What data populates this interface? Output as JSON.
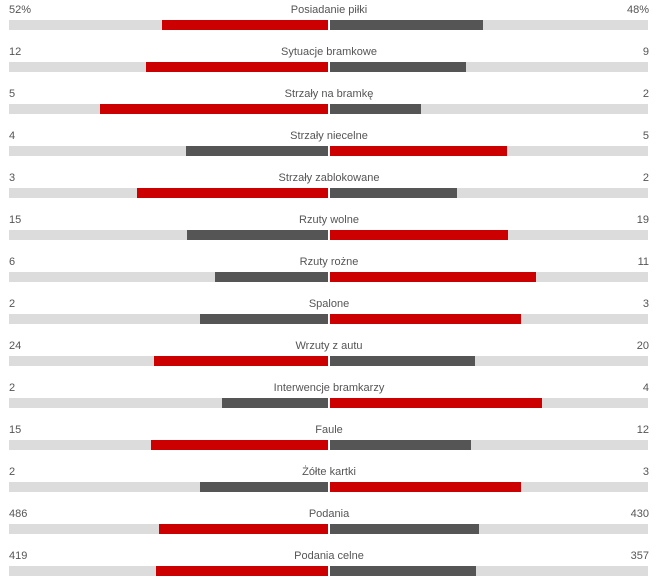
{
  "colors": {
    "winner": "#cc0000",
    "loser": "#555555",
    "track": "#dcdcdc"
  },
  "stats": [
    {
      "label": "Posiadanie piłki",
      "home": "52%",
      "away": "48%",
      "home_share": 0.52,
      "away_share": 0.48
    },
    {
      "label": "Sytuacje bramkowe",
      "home": "12",
      "away": "9",
      "home_share": 0.571,
      "away_share": 0.429
    },
    {
      "label": "Strzały na bramkę",
      "home": "5",
      "away": "2",
      "home_share": 0.714,
      "away_share": 0.286
    },
    {
      "label": "Strzały niecelne",
      "home": "4",
      "away": "5",
      "home_share": 0.444,
      "away_share": 0.556
    },
    {
      "label": "Strzały zablokowane",
      "home": "3",
      "away": "2",
      "home_share": 0.6,
      "away_share": 0.4
    },
    {
      "label": "Rzuty wolne",
      "home": "15",
      "away": "19",
      "home_share": 0.441,
      "away_share": 0.559
    },
    {
      "label": "Rzuty rożne",
      "home": "6",
      "away": "11",
      "home_share": 0.353,
      "away_share": 0.647
    },
    {
      "label": "Spalone",
      "home": "2",
      "away": "3",
      "home_share": 0.4,
      "away_share": 0.6
    },
    {
      "label": "Wrzuty z autu",
      "home": "24",
      "away": "20",
      "home_share": 0.545,
      "away_share": 0.455
    },
    {
      "label": "Interwencje bramkarzy",
      "home": "2",
      "away": "4",
      "home_share": 0.333,
      "away_share": 0.667
    },
    {
      "label": "Faule",
      "home": "15",
      "away": "12",
      "home_share": 0.556,
      "away_share": 0.444
    },
    {
      "label": "Żółte kartki",
      "home": "2",
      "away": "3",
      "home_share": 0.4,
      "away_share": 0.6
    },
    {
      "label": "Podania",
      "home": "486",
      "away": "430",
      "home_share": 0.531,
      "away_share": 0.469
    },
    {
      "label": "Podania celne",
      "home": "419",
      "away": "357",
      "home_share": 0.54,
      "away_share": 0.46
    }
  ]
}
